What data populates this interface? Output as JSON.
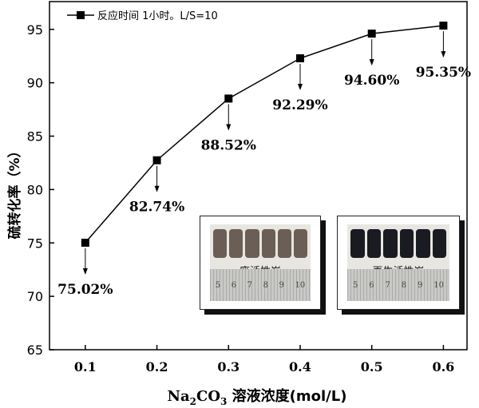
{
  "chart_data": {
    "type": "line",
    "x": [
      0.1,
      0.2,
      0.3,
      0.4,
      0.5,
      0.6
    ],
    "series": [
      {
        "name": "反应时间 1小时。L/S=10",
        "values": [
          75.02,
          82.74,
          88.52,
          92.29,
          94.6,
          95.35
        ]
      }
    ],
    "data_labels": [
      "75.02%",
      "82.74%",
      "88.52%",
      "92.29%",
      "94.60%",
      "95.35%"
    ],
    "xlabel_main": "Na",
    "xlabel_sub1": "2",
    "xlabel_mid": "CO",
    "xlabel_sub2": "3",
    "xlabel_tail": " 溶液浓度(mol/L)",
    "ylabel": "硫转化率（%）",
    "x_ticks": [
      "0.1",
      "0.2",
      "0.3",
      "0.4",
      "0.5",
      "0.6"
    ],
    "y_ticks": [
      "65",
      "70",
      "75",
      "80",
      "85",
      "90",
      "95"
    ],
    "ylim": [
      65,
      97.6
    ],
    "xlim": [
      0.05,
      0.633
    ],
    "legend_position": "top-left",
    "line_color": "#000000",
    "marker": "square"
  },
  "insets": [
    {
      "label": "废活性炭",
      "ruler": [
        "5",
        "6",
        "7",
        "8",
        "9",
        "10"
      ],
      "pellet_color": "#6b5f55"
    },
    {
      "label": "再生活性炭",
      "ruler": [
        "5",
        "6",
        "7",
        "8",
        "9",
        "10"
      ],
      "pellet_color": "#1a1b22"
    }
  ]
}
